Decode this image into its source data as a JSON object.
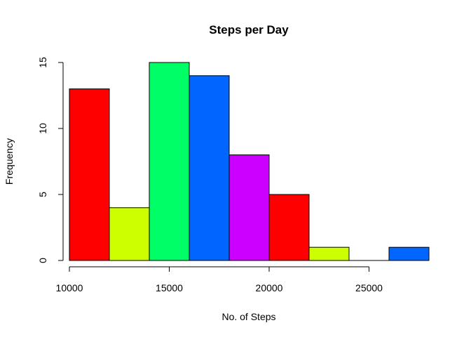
{
  "chart_data": {
    "type": "bar",
    "subtype": "histogram",
    "title": "Steps per Day",
    "xlabel": "No. of Steps",
    "ylabel": "Frequency",
    "bins": [
      {
        "from": 10000,
        "to": 12000,
        "count": 13,
        "color": "#FF0000"
      },
      {
        "from": 12000,
        "to": 14000,
        "count": 4,
        "color": "#CCFF00"
      },
      {
        "from": 14000,
        "to": 16000,
        "count": 15,
        "color": "#00FF66"
      },
      {
        "from": 16000,
        "to": 18000,
        "count": 14,
        "color": "#0066FF"
      },
      {
        "from": 18000,
        "to": 20000,
        "count": 8,
        "color": "#CC00FF"
      },
      {
        "from": 20000,
        "to": 22000,
        "count": 5,
        "color": "#FF0000"
      },
      {
        "from": 22000,
        "to": 24000,
        "count": 1,
        "color": "#CCFF00"
      },
      {
        "from": 24000,
        "to": 26000,
        "count": 0,
        "color": "#00FF66"
      },
      {
        "from": 26000,
        "to": 28000,
        "count": 1,
        "color": "#0066FF"
      }
    ],
    "xlim": [
      10000,
      28000
    ],
    "ylim": [
      0,
      15
    ],
    "x_ticks": [
      10000,
      15000,
      20000,
      25000
    ],
    "x_tick_labels": [
      "10000",
      "15000",
      "20000",
      "25000"
    ],
    "y_ticks": [
      0,
      5,
      10,
      15
    ],
    "y_tick_labels": [
      "0",
      "5",
      "10",
      "15"
    ],
    "grid": false,
    "legend": "none"
  }
}
